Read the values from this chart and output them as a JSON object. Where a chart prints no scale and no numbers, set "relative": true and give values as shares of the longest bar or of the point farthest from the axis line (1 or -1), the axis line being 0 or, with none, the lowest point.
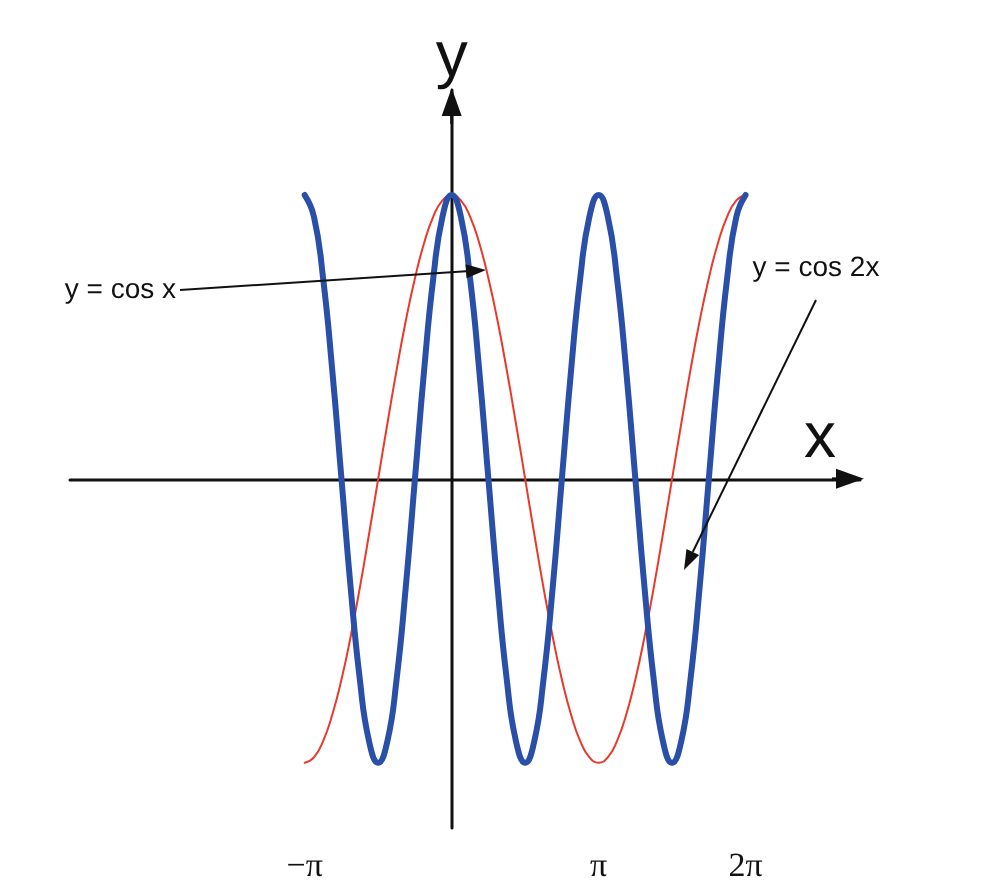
{
  "chart_data": {
    "type": "line",
    "xlabel": "x",
    "ylabel": "y",
    "relative": true,
    "grid": false,
    "marker": "none",
    "line_style": "solid",
    "xlim": [
      -8.16,
      8.73
    ],
    "xticks": [
      {
        "value": -3.142,
        "label": "−π"
      },
      {
        "value": 3.142,
        "label": "π"
      },
      {
        "value": 6.283,
        "label": "2π"
      }
    ],
    "x": [
      -3.142,
      -2.945,
      -2.749,
      -2.553,
      -2.356,
      -2.16,
      -1.963,
      -1.767,
      -1.571,
      -1.374,
      -1.178,
      -0.982,
      -0.785,
      -0.589,
      -0.393,
      -0.196,
      0,
      0.196,
      0.393,
      0.589,
      0.785,
      0.982,
      1.178,
      1.374,
      1.571,
      1.767,
      1.963,
      2.16,
      2.356,
      2.553,
      2.749,
      2.945,
      3.142,
      3.338,
      3.534,
      3.731,
      3.927,
      4.123,
      4.32,
      4.516,
      4.712,
      4.909,
      5.105,
      5.301,
      5.498,
      5.694,
      5.89,
      6.087,
      6.283
    ],
    "series": [
      {
        "color": "#e8392a",
        "values": [
          -1,
          -0.981,
          -0.924,
          -0.831,
          -0.707,
          -0.556,
          -0.383,
          -0.195,
          0,
          0.195,
          0.383,
          0.556,
          0.707,
          0.831,
          0.924,
          0.981,
          1,
          0.981,
          0.924,
          0.831,
          0.707,
          0.556,
          0.383,
          0.195,
          0,
          -0.195,
          -0.383,
          -0.556,
          -0.707,
          -0.831,
          -0.924,
          -0.981,
          -1,
          -0.981,
          -0.924,
          -0.831,
          -0.707,
          -0.556,
          -0.383,
          -0.195,
          0,
          0.195,
          0.383,
          0.556,
          0.707,
          0.831,
          0.924,
          0.981,
          1
        ]
      },
      {
        "color": "#2a4fa8",
        "values": [
          1,
          0.924,
          0.707,
          0.383,
          0,
          -0.383,
          -0.707,
          -0.924,
          -1,
          -0.924,
          -0.707,
          -0.383,
          0,
          0.383,
          0.707,
          0.924,
          1,
          0.924,
          0.707,
          0.383,
          0,
          -0.383,
          -0.707,
          -0.924,
          -1,
          -0.924,
          -0.707,
          -0.383,
          0,
          0.383,
          0.707,
          0.924,
          1,
          0.924,
          0.707,
          0.383,
          0,
          -0.383,
          -0.707,
          -0.924,
          -1,
          -0.924,
          -0.707,
          -0.383,
          0,
          0.383,
          0.707,
          0.924,
          1
        ]
      }
    ],
    "annotations": [
      "y = cos x",
      "y = cos 2x"
    ]
  }
}
